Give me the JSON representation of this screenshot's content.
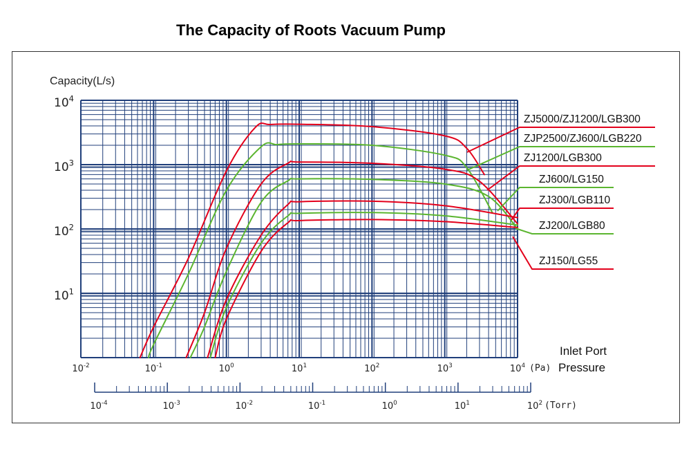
{
  "chart_data": {
    "type": "line",
    "title": "The Capacity of Roots Vacuum Pump",
    "ylabel": "Capacity(L/s)",
    "xlabel": [
      "Inlet Port",
      "Pressure"
    ],
    "x_scale": "log",
    "y_scale": "log",
    "xlim": [
      0.01,
      10000
    ],
    "ylim": [
      1,
      10000
    ],
    "grid": true,
    "x_unit": "(Pa)",
    "secondary_x_unit": "(Torr)",
    "pa_ticks": [
      {
        "base": "10",
        "exp": "-2"
      },
      {
        "base": "10",
        "exp": "-1"
      },
      {
        "base": "10",
        "exp": "0"
      },
      {
        "base": "10",
        "exp": "1"
      },
      {
        "base": "10",
        "exp": "2"
      },
      {
        "base": "10",
        "exp": "3"
      },
      {
        "base": "10",
        "exp": "4"
      }
    ],
    "y_ticks": [
      {
        "base": "10",
        "exp": "4"
      },
      {
        "base": "10",
        "exp": "3"
      },
      {
        "base": "10",
        "exp": "2"
      },
      {
        "base": "10",
        "exp": "1"
      }
    ],
    "torr_ticks": [
      {
        "base": "10",
        "exp": "-4"
      },
      {
        "base": "10",
        "exp": "-3"
      },
      {
        "base": "10",
        "exp": "-2"
      },
      {
        "base": "10",
        "exp": "-1"
      },
      {
        "base": "10",
        "exp": "0"
      },
      {
        "base": "10",
        "exp": "1"
      },
      {
        "base": "10",
        "exp": "2"
      }
    ],
    "series": [
      {
        "name": "ZJ5000/ZJ1200/LGB300",
        "color": "#e3001b",
        "x": [
          0.065,
          0.1,
          0.3,
          1,
          2.5,
          4,
          10,
          100,
          1000,
          2000,
          3500
        ],
        "y": [
          1,
          3,
          35,
          800,
          3800,
          4200,
          4250,
          3900,
          2800,
          1800,
          700
        ]
      },
      {
        "name": "ZJP2500/ZJ600/LGB220",
        "color": "#5bb52f",
        "x": [
          0.085,
          0.1,
          0.3,
          1,
          3,
          5,
          10,
          100,
          1000,
          2000,
          4500
        ],
        "y": [
          1,
          1.6,
          20,
          400,
          1900,
          2050,
          2100,
          2000,
          1400,
          900,
          180
        ]
      },
      {
        "name": "ZJ1200/LGB300",
        "color": "#e3001b",
        "x": [
          0.28,
          0.5,
          1,
          3,
          7,
          10,
          100,
          1000,
          3000,
          10000
        ],
        "y": [
          1,
          5,
          50,
          500,
          1050,
          1100,
          1050,
          850,
          550,
          120
        ]
      },
      {
        "name": "ZJ600/LG150",
        "color": "#5bb52f",
        "x": [
          0.32,
          0.5,
          1,
          3,
          7,
          10,
          100,
          1000,
          4000,
          10000
        ],
        "y": [
          1,
          3,
          22,
          260,
          560,
          600,
          590,
          500,
          320,
          100
        ]
      },
      {
        "name": "ZJ300/LGB110",
        "color": "#e3001b",
        "x": [
          0.55,
          1,
          3,
          7,
          10,
          100,
          1000,
          10000
        ],
        "y": [
          1,
          8,
          80,
          240,
          265,
          270,
          230,
          150
        ]
      },
      {
        "name": "ZJ200/LGB80",
        "color": "#5bb52f",
        "x": [
          0.6,
          1,
          3,
          7,
          10,
          100,
          1000,
          10000
        ],
        "y": [
          1,
          6,
          60,
          160,
          175,
          180,
          160,
          115
        ]
      },
      {
        "name": "ZJ150/LG55",
        "color": "#e3001b",
        "x": [
          0.7,
          1,
          3,
          7,
          10,
          100,
          1000,
          10000
        ],
        "y": [
          1,
          4,
          45,
          125,
          135,
          140,
          130,
          105
        ]
      }
    ]
  }
}
